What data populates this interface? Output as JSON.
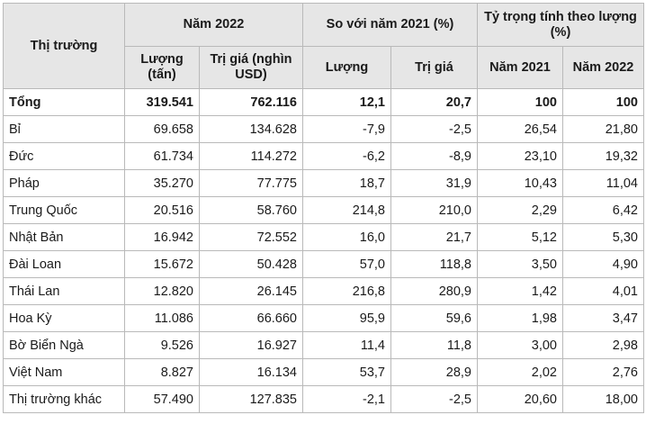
{
  "headers": {
    "market": "Thị trường",
    "year_2022": "Năm 2022",
    "vs_2021": "So với năm 2021 (%)",
    "share": "Tỷ trọng tính theo lượng (%)",
    "volume": "Lượng (tấn)",
    "value": "Trị giá (nghìn USD)",
    "vs_volume": "Lượng",
    "vs_value": "Trị giá",
    "share_2021": "Năm 2021",
    "share_2022": "Năm 2022"
  },
  "rows": [
    {
      "market": "Tổng",
      "volume": "319.541",
      "value": "762.116",
      "chg_volume": "12,1",
      "chg_value": "20,7",
      "share_2021": "100",
      "share_2022": "100"
    },
    {
      "market": "Bỉ",
      "volume": "69.658",
      "value": "134.628",
      "chg_volume": "-7,9",
      "chg_value": "-2,5",
      "share_2021": "26,54",
      "share_2022": "21,80"
    },
    {
      "market": "Đức",
      "volume": "61.734",
      "value": "114.272",
      "chg_volume": "-6,2",
      "chg_value": "-8,9",
      "share_2021": "23,10",
      "share_2022": "19,32"
    },
    {
      "market": "Pháp",
      "volume": "35.270",
      "value": "77.775",
      "chg_volume": "18,7",
      "chg_value": "31,9",
      "share_2021": "10,43",
      "share_2022": "11,04"
    },
    {
      "market": "Trung Quốc",
      "volume": "20.516",
      "value": "58.760",
      "chg_volume": "214,8",
      "chg_value": "210,0",
      "share_2021": "2,29",
      "share_2022": "6,42"
    },
    {
      "market": "Nhật Bản",
      "volume": "16.942",
      "value": "72.552",
      "chg_volume": "16,0",
      "chg_value": "21,7",
      "share_2021": "5,12",
      "share_2022": "5,30"
    },
    {
      "market": "Đài Loan",
      "volume": "15.672",
      "value": "50.428",
      "chg_volume": "57,0",
      "chg_value": "118,8",
      "share_2021": "3,50",
      "share_2022": "4,90"
    },
    {
      "market": "Thái Lan",
      "volume": "12.820",
      "value": "26.145",
      "chg_volume": "216,8",
      "chg_value": "280,9",
      "share_2021": "1,42",
      "share_2022": "4,01"
    },
    {
      "market": "Hoa Kỳ",
      "volume": "11.086",
      "value": "66.660",
      "chg_volume": "95,9",
      "chg_value": "59,6",
      "share_2021": "1,98",
      "share_2022": "3,47"
    },
    {
      "market": "Bờ Biển Ngà",
      "volume": "9.526",
      "value": "16.927",
      "chg_volume": "11,4",
      "chg_value": "11,8",
      "share_2021": "3,00",
      "share_2022": "2,98"
    },
    {
      "market": "Việt Nam",
      "volume": "8.827",
      "value": "16.134",
      "chg_volume": "53,7",
      "chg_value": "28,9",
      "share_2021": "2,02",
      "share_2022": "2,76"
    },
    {
      "market": "Thị trường khác",
      "volume": "57.490",
      "value": "127.835",
      "chg_volume": "-2,1",
      "chg_value": "-2,5",
      "share_2021": "20,60",
      "share_2022": "18,00"
    }
  ]
}
